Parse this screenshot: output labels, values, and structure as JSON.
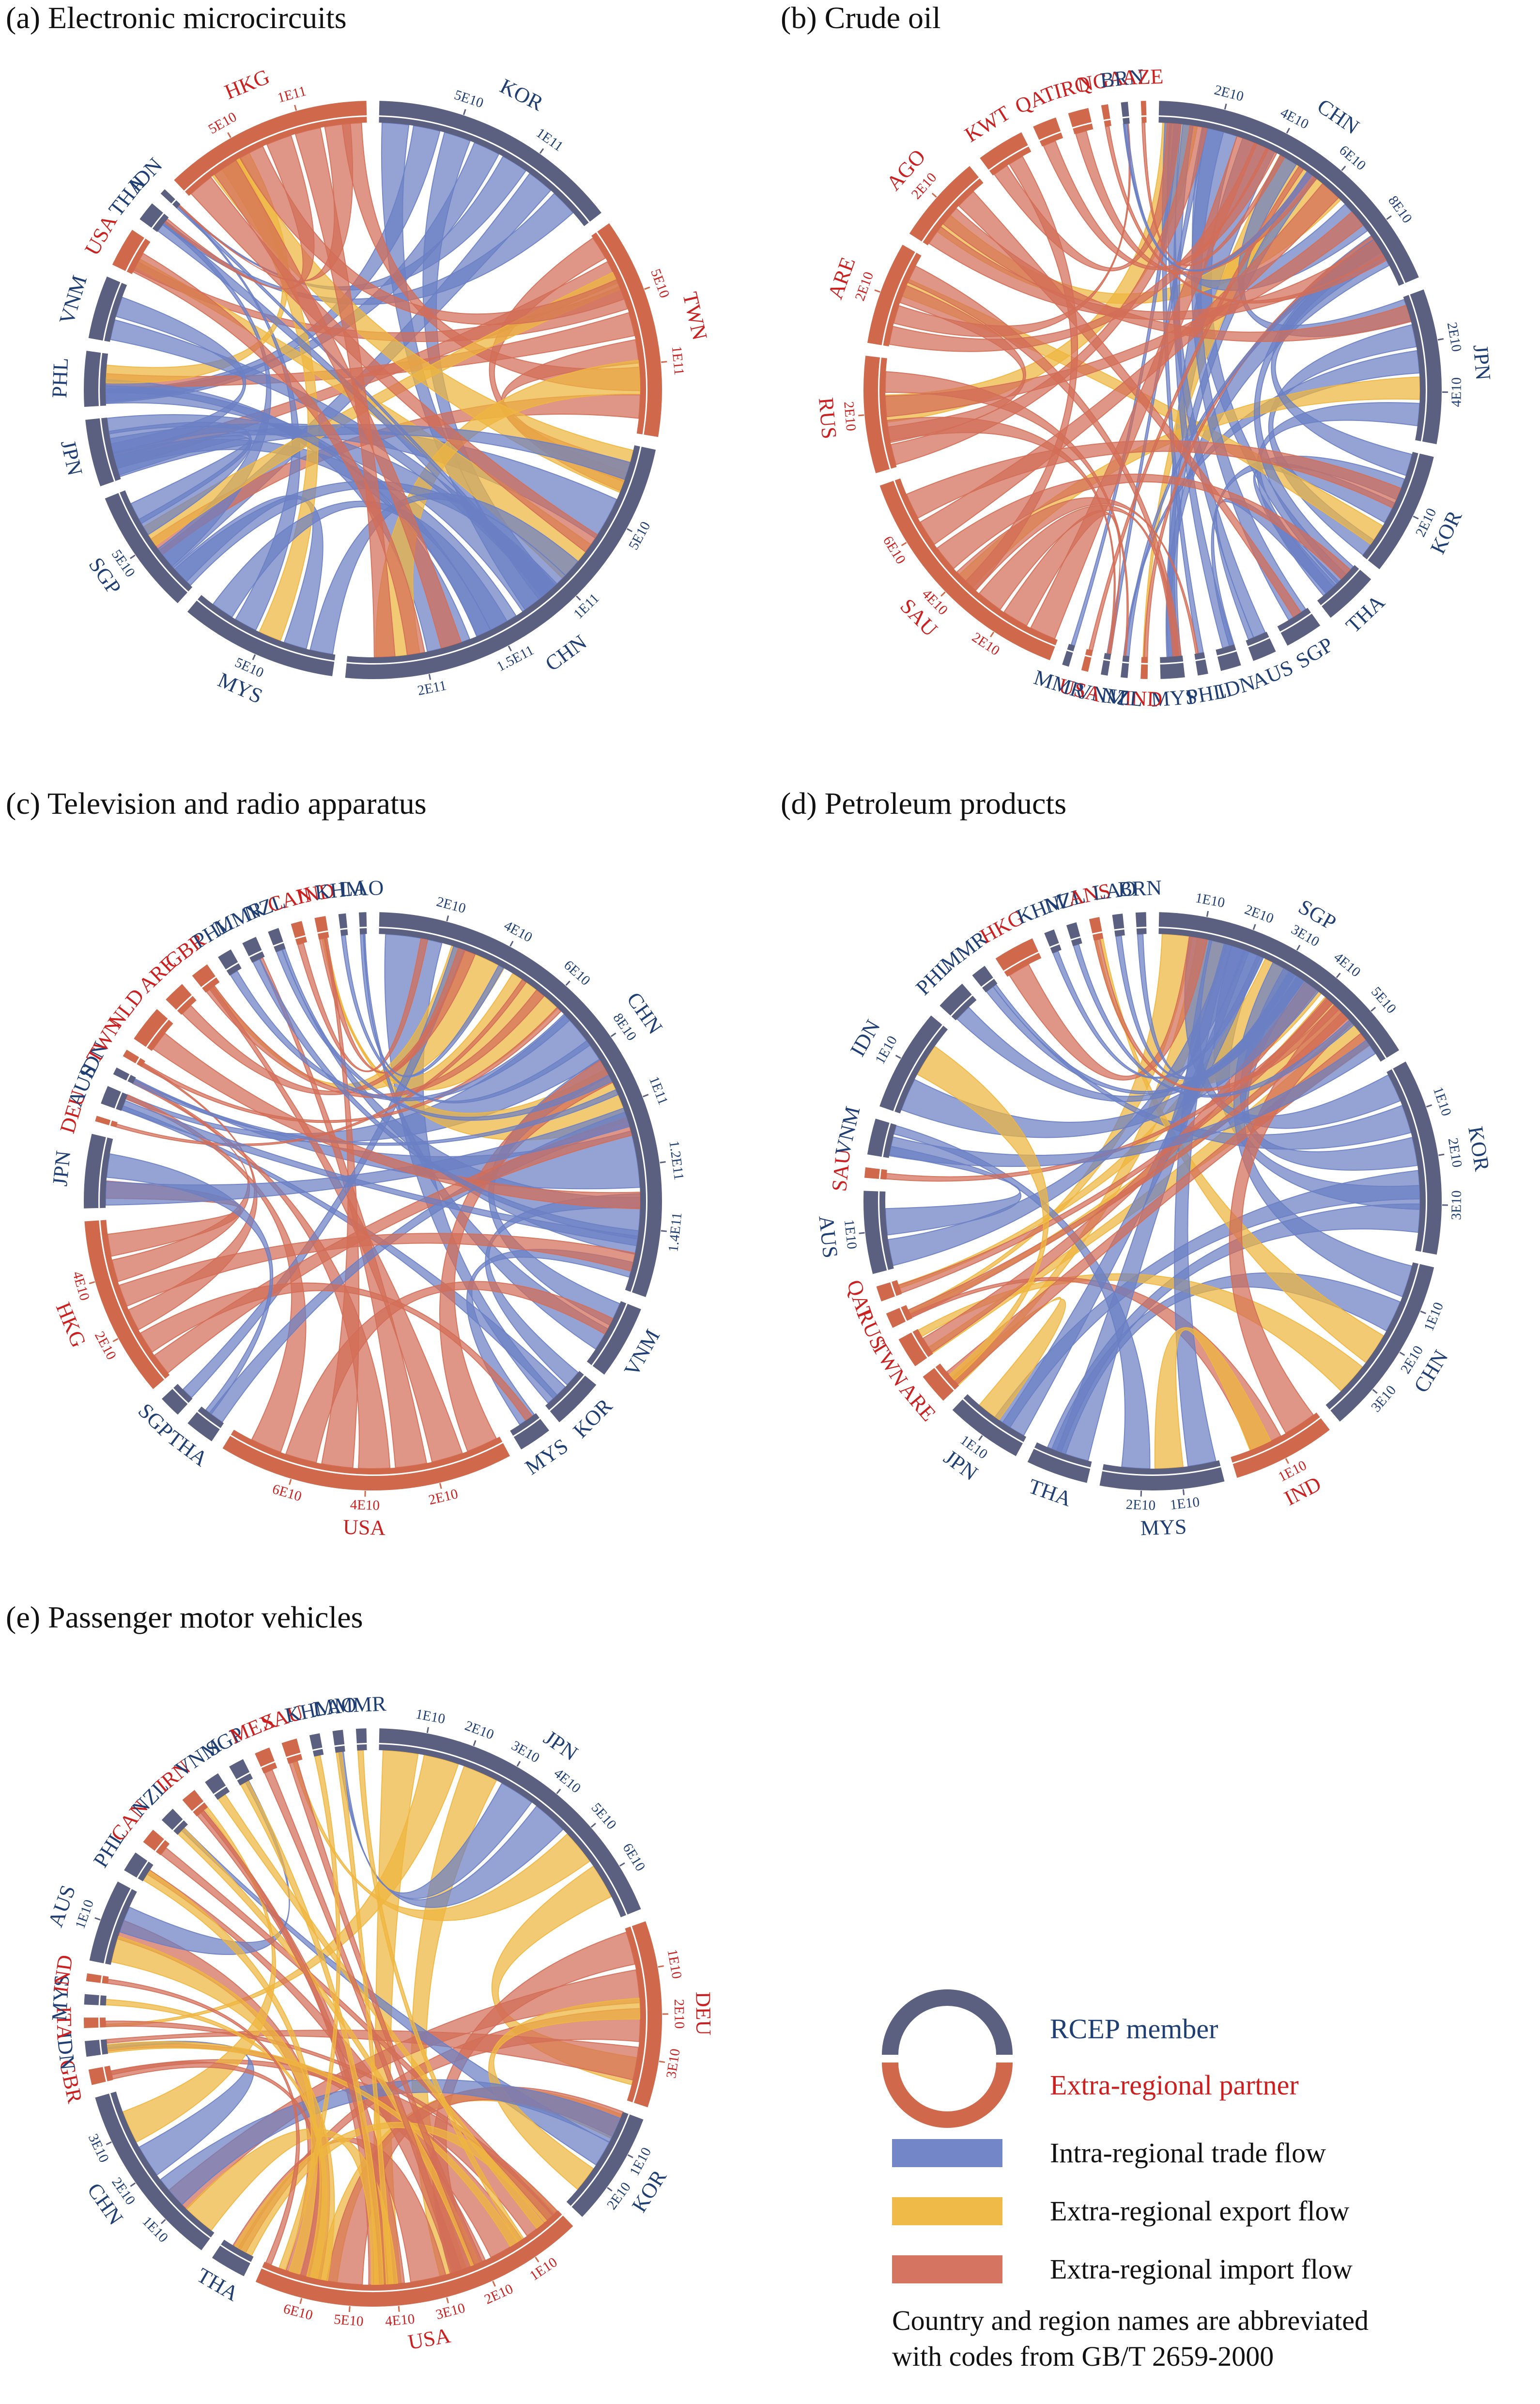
{
  "colors": {
    "member_arc": "#5b5f80",
    "partner_arc": "#d0694c",
    "member_label": "#1f3f74",
    "partner_label": "#cc1f1f",
    "intra_flow": "#6b7fc4",
    "export_flow": "#efb63f",
    "import_flow": "#d36e58"
  },
  "legend": {
    "member": "RCEP member",
    "partner": "Extra-regional partner",
    "intra": "Intra-regional trade flow",
    "export": "Extra-regional export flow",
    "import": "Extra-regional import flow",
    "note_line1": "Country and region names are abbreviated",
    "note_line2": "with codes from GB/T 2659-2000"
  },
  "panels": [
    {
      "title": "(a) Electronic microcircuits",
      "segments": [
        {
          "code": "KOR",
          "member": true,
          "size": 6.4,
          "ticks": [
            "5E10",
            "1E11"
          ]
        },
        {
          "code": "TWN",
          "member": false,
          "size": 5.6,
          "ticks": [
            "5E10",
            "1E11"
          ]
        },
        {
          "code": "CHN",
          "member": true,
          "size": 10.5,
          "ticks": [
            "5E10",
            "1E11",
            "1.5E11",
            "2E11"
          ]
        },
        {
          "code": "MYS",
          "member": true,
          "size": 4.0,
          "ticks": [
            "5E10"
          ]
        },
        {
          "code": "SGP",
          "member": true,
          "size": 3.2,
          "ticks": [
            "5E10"
          ]
        },
        {
          "code": "JPN",
          "member": true,
          "size": 1.7,
          "ticks": []
        },
        {
          "code": "PHL",
          "member": true,
          "size": 1.4,
          "ticks": []
        },
        {
          "code": "VNM",
          "member": true,
          "size": 1.6,
          "ticks": []
        },
        {
          "code": "USA",
          "member": false,
          "size": 1.0,
          "ticks": []
        },
        {
          "code": "THA",
          "member": true,
          "size": 0.5,
          "ticks": []
        },
        {
          "code": "IDN",
          "member": true,
          "size": 0.15,
          "ticks": []
        },
        {
          "code": "HKG",
          "member": false,
          "size": 5.3,
          "ticks": [
            "5E10",
            "1E11"
          ]
        }
      ]
    },
    {
      "title": "(b) Crude oil",
      "segments": [
        {
          "code": "CHN",
          "member": true,
          "size": 9.5,
          "ticks": [
            "2E10",
            "4E10",
            "6E10",
            "8E10"
          ]
        },
        {
          "code": "JPN",
          "member": true,
          "size": 4.5,
          "ticks": [
            "2E10",
            "4E10"
          ]
        },
        {
          "code": "KOR",
          "member": true,
          "size": 3.6,
          "ticks": [
            "2E10"
          ]
        },
        {
          "code": "THA",
          "member": true,
          "size": 1.6,
          "ticks": []
        },
        {
          "code": "SGP",
          "member": true,
          "size": 1.1,
          "ticks": []
        },
        {
          "code": "AUS",
          "member": true,
          "size": 0.7,
          "ticks": []
        },
        {
          "code": "IDN",
          "member": true,
          "size": 0.6,
          "ticks": []
        },
        {
          "code": "PHL",
          "member": true,
          "size": 0.3,
          "ticks": []
        },
        {
          "code": "MYS",
          "member": true,
          "size": 0.7,
          "ticks": []
        },
        {
          "code": "IND",
          "member": false,
          "size": 0.2,
          "ticks": []
        },
        {
          "code": "NZL",
          "member": true,
          "size": 0.2,
          "ticks": []
        },
        {
          "code": "VNM",
          "member": true,
          "size": 0.2,
          "ticks": []
        },
        {
          "code": "USA",
          "member": false,
          "size": 0.2,
          "ticks": []
        },
        {
          "code": "MMR",
          "member": true,
          "size": 0.2,
          "ticks": []
        },
        {
          "code": "SAU",
          "member": false,
          "size": 7.2,
          "ticks": [
            "2E10",
            "4E10",
            "6E10"
          ]
        },
        {
          "code": "RUS",
          "member": false,
          "size": 3.4,
          "ticks": [
            "2E10"
          ]
        },
        {
          "code": "ARE",
          "member": false,
          "size": 3.0,
          "ticks": [
            "2E10"
          ]
        },
        {
          "code": "AGO",
          "member": false,
          "size": 2.6,
          "ticks": [
            "2E10"
          ]
        },
        {
          "code": "KWT",
          "member": false,
          "size": 1.4,
          "ticks": []
        },
        {
          "code": "QAT",
          "member": false,
          "size": 0.7,
          "ticks": []
        },
        {
          "code": "IRQ",
          "member": false,
          "size": 0.6,
          "ticks": []
        },
        {
          "code": "NGA",
          "member": false,
          "size": 0.2,
          "ticks": []
        },
        {
          "code": "BRN",
          "member": true,
          "size": 0.2,
          "ticks": []
        },
        {
          "code": "AZE",
          "member": false,
          "size": 0.15,
          "ticks": []
        }
      ]
    },
    {
      "title": "(c) Television and radio apparatus",
      "segments": [
        {
          "code": "CHN",
          "member": true,
          "size": 14.5,
          "ticks": [
            "2E10",
            "4E10",
            "6E10",
            "8E10",
            "1E11",
            "1.2E11",
            "1.4E11"
          ]
        },
        {
          "code": "VNM",
          "member": true,
          "size": 2.0,
          "ticks": []
        },
        {
          "code": "KOR",
          "member": true,
          "size": 1.4,
          "ticks": []
        },
        {
          "code": "MYS",
          "member": true,
          "size": 0.9,
          "ticks": []
        },
        {
          "code": "USA",
          "member": false,
          "size": 8.0,
          "ticks": [
            "2E10",
            "4E10",
            "6E10"
          ]
        },
        {
          "code": "THA",
          "member": true,
          "size": 0.8,
          "ticks": []
        },
        {
          "code": "SGP",
          "member": true,
          "size": 0.6,
          "ticks": []
        },
        {
          "code": "HKG",
          "member": false,
          "size": 4.9,
          "ticks": [
            "2E10",
            "4E10"
          ]
        },
        {
          "code": "JPN",
          "member": true,
          "size": 2.0,
          "ticks": []
        },
        {
          "code": "DEU",
          "member": false,
          "size": 0.15,
          "ticks": []
        },
        {
          "code": "AUS",
          "member": true,
          "size": 0.5,
          "ticks": []
        },
        {
          "code": "IDN",
          "member": true,
          "size": 0.2,
          "ticks": []
        },
        {
          "code": "TWN",
          "member": false,
          "size": 0.2,
          "ticks": []
        },
        {
          "code": "NLD",
          "member": false,
          "size": 1.0,
          "ticks": []
        },
        {
          "code": "ARE",
          "member": false,
          "size": 0.6,
          "ticks": []
        },
        {
          "code": "GBR",
          "member": false,
          "size": 0.5,
          "ticks": []
        },
        {
          "code": "PHL",
          "member": true,
          "size": 0.4,
          "ticks": []
        },
        {
          "code": "MMR",
          "member": true,
          "size": 0.4,
          "ticks": []
        },
        {
          "code": "NZL",
          "member": true,
          "size": 0.3,
          "ticks": []
        },
        {
          "code": "CAN",
          "member": false,
          "size": 0.3,
          "ticks": []
        },
        {
          "code": "IND",
          "member": false,
          "size": 0.3,
          "ticks": []
        },
        {
          "code": "KHM",
          "member": true,
          "size": 0.2,
          "ticks": []
        },
        {
          "code": "LAO",
          "member": true,
          "size": 0.2,
          "ticks": []
        }
      ]
    },
    {
      "title": "(d) Petroleum products",
      "segments": [
        {
          "code": "SGP",
          "member": true,
          "size": 5.5,
          "ticks": [
            "1E10",
            "2E10",
            "3E10",
            "4E10",
            "5E10"
          ]
        },
        {
          "code": "KOR",
          "member": true,
          "size": 3.8,
          "ticks": [
            "1E10",
            "2E10",
            "3E10"
          ]
        },
        {
          "code": "CHN",
          "member": true,
          "size": 3.5,
          "ticks": [
            "1E10",
            "2E10",
            "3E10"
          ]
        },
        {
          "code": "IND",
          "member": false,
          "size": 2.0,
          "ticks": [
            "1E10"
          ]
        },
        {
          "code": "MYS",
          "member": true,
          "size": 2.4,
          "ticks": [
            "1E10",
            "2E10"
          ]
        },
        {
          "code": "THA",
          "member": true,
          "size": 1.2,
          "ticks": []
        },
        {
          "code": "JPN",
          "member": true,
          "size": 1.5,
          "ticks": [
            "1E10"
          ]
        },
        {
          "code": "ARE",
          "member": false,
          "size": 0.6,
          "ticks": []
        },
        {
          "code": "TWN",
          "member": false,
          "size": 0.6,
          "ticks": []
        },
        {
          "code": "RUS",
          "member": false,
          "size": 0.3,
          "ticks": []
        },
        {
          "code": "QAT",
          "member": false,
          "size": 0.3,
          "ticks": []
        },
        {
          "code": "AUS",
          "member": true,
          "size": 1.6,
          "ticks": [
            "1E10"
          ]
        },
        {
          "code": "SAU",
          "member": false,
          "size": 0.2,
          "ticks": []
        },
        {
          "code": "VNM",
          "member": true,
          "size": 0.7,
          "ticks": []
        },
        {
          "code": "IDN",
          "member": true,
          "size": 2.0,
          "ticks": [
            "1E10"
          ]
        },
        {
          "code": "PHL",
          "member": true,
          "size": 0.6,
          "ticks": []
        },
        {
          "code": "MMR",
          "member": true,
          "size": 0.3,
          "ticks": []
        },
        {
          "code": "HKG",
          "member": false,
          "size": 0.8,
          "ticks": []
        },
        {
          "code": "KHM",
          "member": true,
          "size": 0.2,
          "ticks": []
        },
        {
          "code": "NZL",
          "member": true,
          "size": 0.2,
          "ticks": []
        },
        {
          "code": "ANS",
          "member": false,
          "size": 0.2,
          "ticks": []
        },
        {
          "code": "LAO",
          "member": true,
          "size": 0.2,
          "ticks": []
        },
        {
          "code": "BRN",
          "member": true,
          "size": 0.2,
          "ticks": []
        }
      ]
    },
    {
      "title": "(e) Passenger motor vehicles",
      "segments": [
        {
          "code": "JPN",
          "member": true,
          "size": 6.4,
          "ticks": [
            "1E10",
            "2E10",
            "3E10",
            "4E10",
            "5E10",
            "6E10"
          ]
        },
        {
          "code": "DEU",
          "member": false,
          "size": 3.6,
          "ticks": [
            "1E10",
            "2E10",
            "3E10"
          ]
        },
        {
          "code": "KOR",
          "member": true,
          "size": 2.2,
          "ticks": [
            "1E10",
            "2E10"
          ]
        },
        {
          "code": "USA",
          "member": false,
          "size": 6.5,
          "ticks": [
            "1E10",
            "2E10",
            "3E10",
            "4E10",
            "5E10",
            "6E10"
          ]
        },
        {
          "code": "THA",
          "member": true,
          "size": 0.7,
          "ticks": []
        },
        {
          "code": "CHN",
          "member": true,
          "size": 3.6,
          "ticks": [
            "1E10",
            "2E10",
            "3E10"
          ]
        },
        {
          "code": "GBR",
          "member": false,
          "size": 0.3,
          "ticks": []
        },
        {
          "code": "IDN",
          "member": true,
          "size": 0.3,
          "ticks": []
        },
        {
          "code": "ITA",
          "member": false,
          "size": 0.2,
          "ticks": []
        },
        {
          "code": "MYS",
          "member": true,
          "size": 0.2,
          "ticks": []
        },
        {
          "code": "IND",
          "member": false,
          "size": 0.15,
          "ticks": []
        },
        {
          "code": "AUS",
          "member": true,
          "size": 1.6,
          "ticks": [
            "1E10"
          ]
        },
        {
          "code": "PHL",
          "member": true,
          "size": 0.4,
          "ticks": []
        },
        {
          "code": "CAN",
          "member": false,
          "size": 0.3,
          "ticks": []
        },
        {
          "code": "NZL",
          "member": true,
          "size": 0.3,
          "ticks": []
        },
        {
          "code": "IRN",
          "member": false,
          "size": 0.3,
          "ticks": []
        },
        {
          "code": "VNM",
          "member": true,
          "size": 0.3,
          "ticks": []
        },
        {
          "code": "SGP",
          "member": true,
          "size": 0.3,
          "ticks": []
        },
        {
          "code": "MEX",
          "member": false,
          "size": 0.3,
          "ticks": []
        },
        {
          "code": "SAU",
          "member": false,
          "size": 0.3,
          "ticks": []
        },
        {
          "code": "KHM",
          "member": true,
          "size": 0.2,
          "ticks": []
        },
        {
          "code": "LAO",
          "member": true,
          "size": 0.2,
          "ticks": []
        },
        {
          "code": "MMR",
          "member": true,
          "size": 0.2,
          "ticks": []
        }
      ]
    }
  ]
}
